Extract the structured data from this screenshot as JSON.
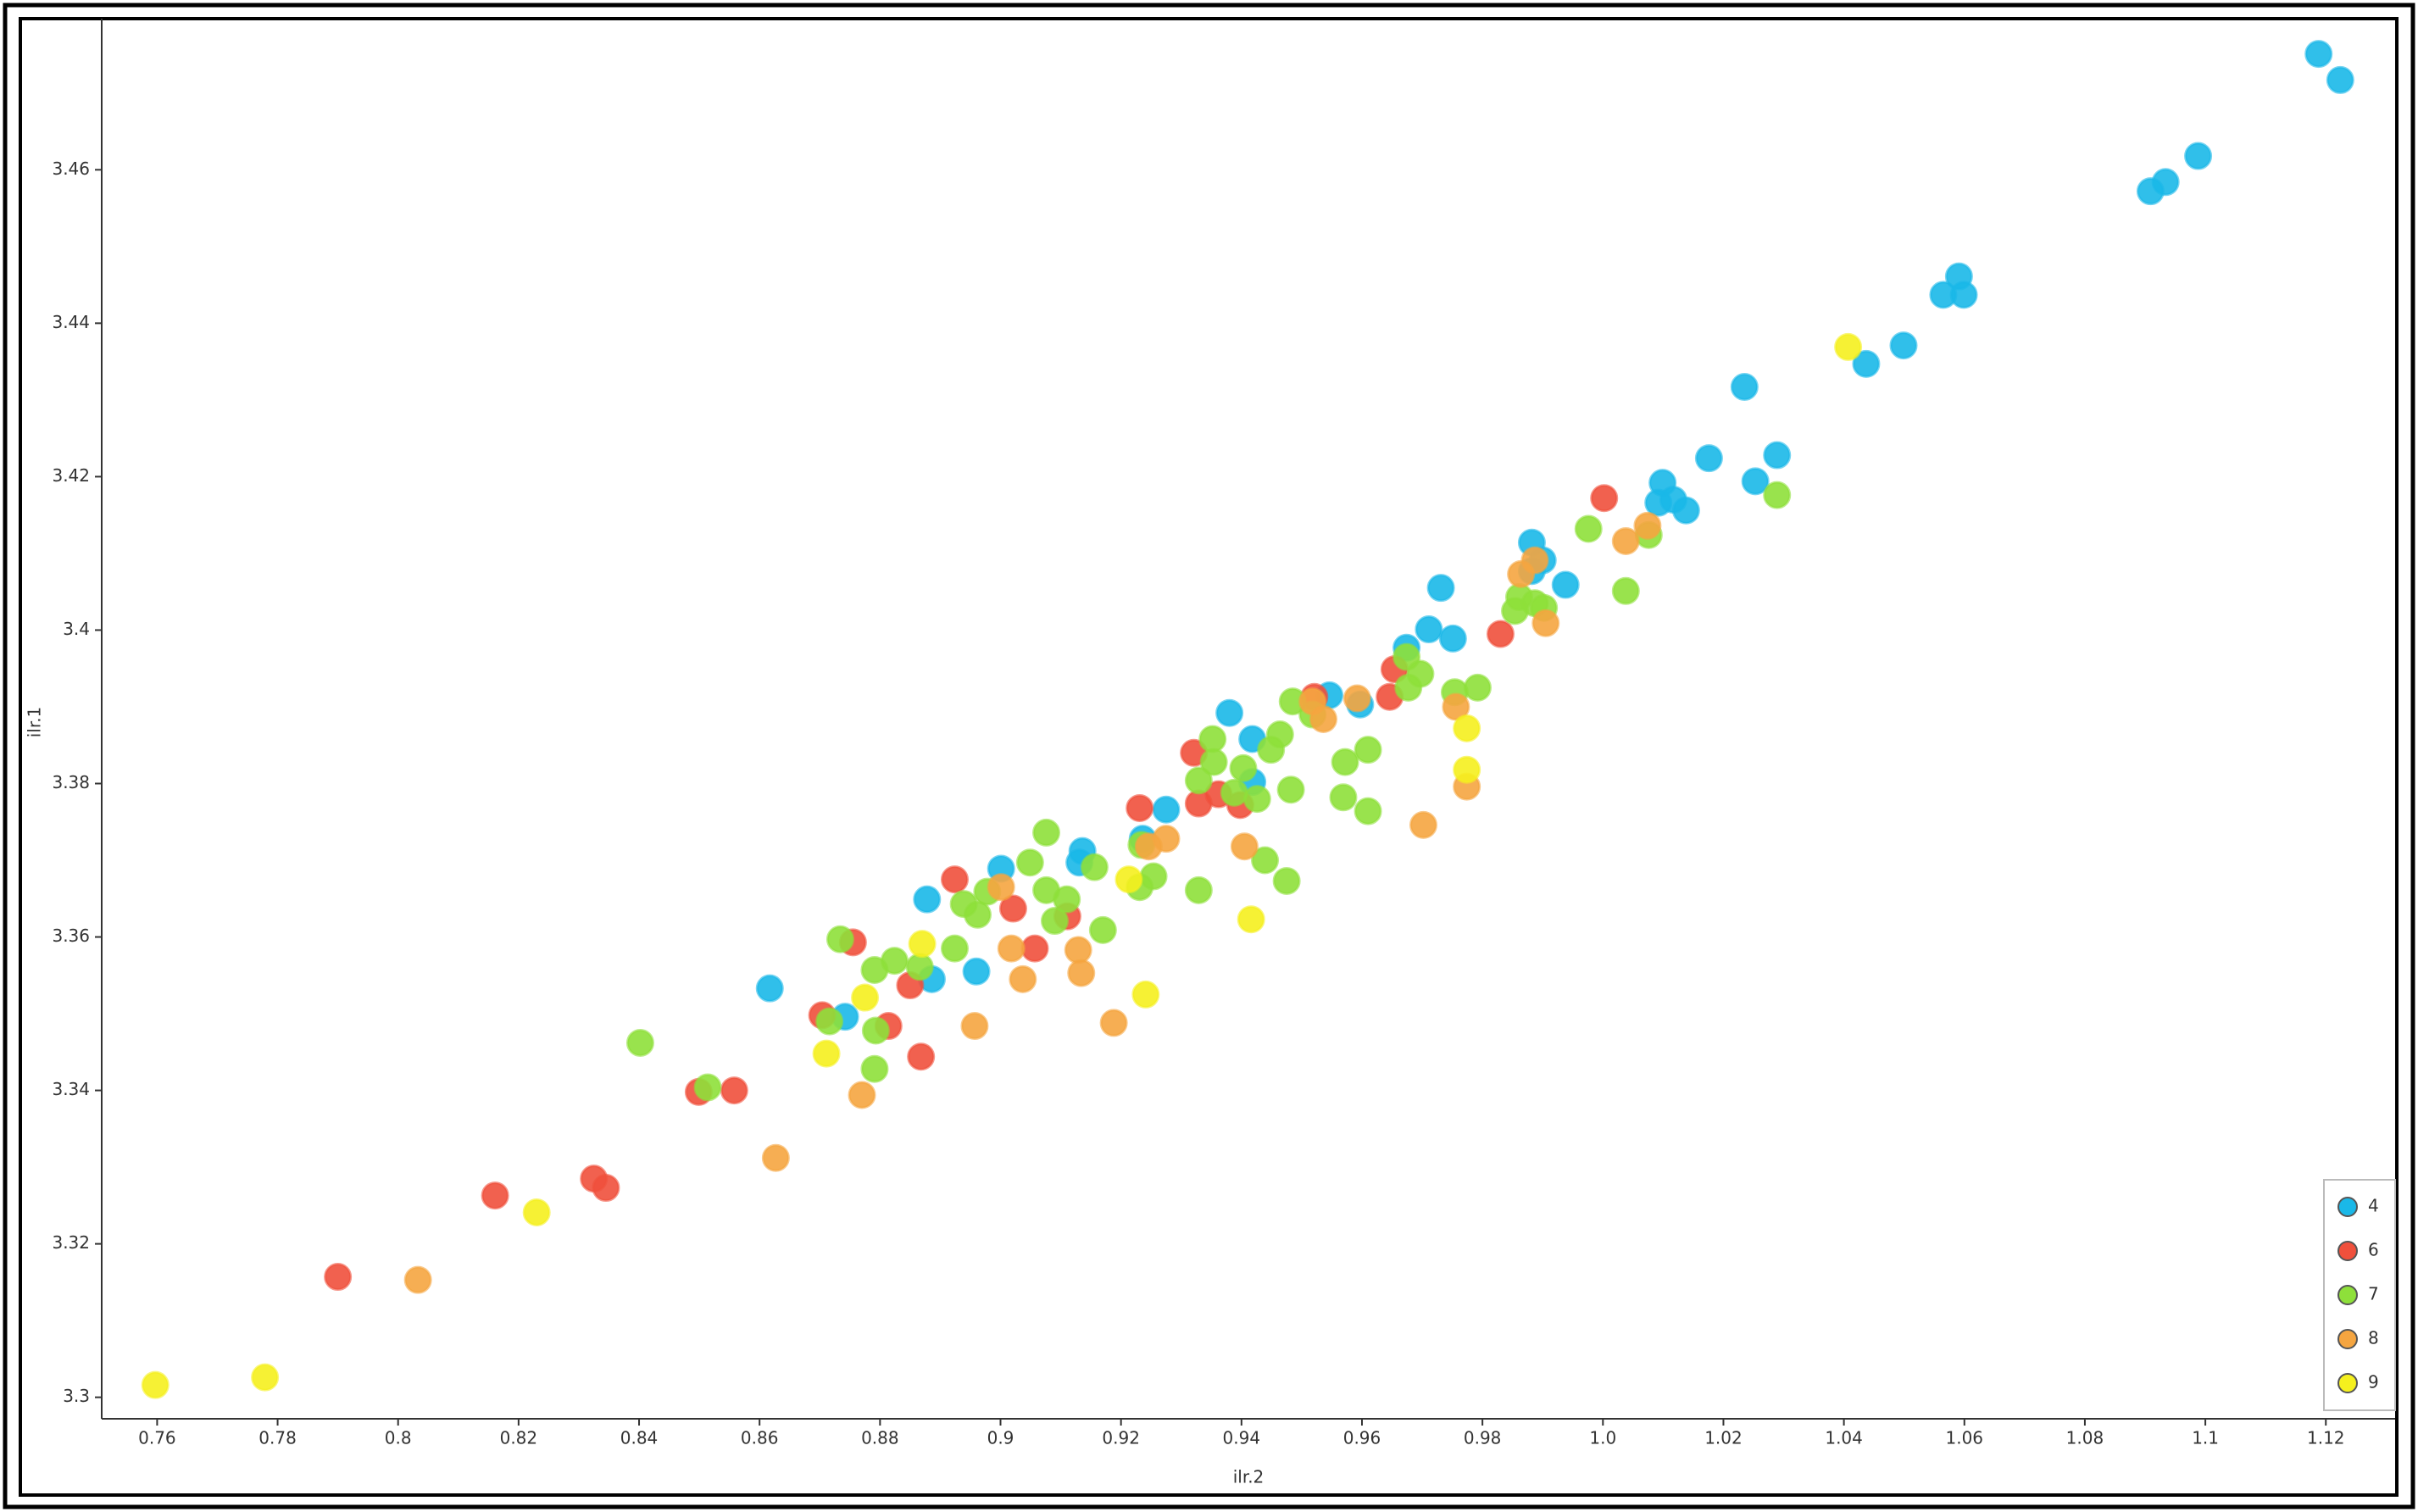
{
  "chart_data": {
    "type": "scatter",
    "x_label": "ilr.2",
    "y_label": "ilr.1",
    "xlim": [
      0.7508,
      1.1315
    ],
    "ylim": [
      3.2972,
      3.4797
    ],
    "xticks": [
      0.76,
      0.78,
      0.8,
      0.82,
      0.84,
      0.86,
      0.88,
      0.9,
      0.92,
      0.94,
      0.96,
      0.98,
      {
        "value": 1,
        "label": "1.0"
      },
      1.02,
      1.04,
      1.06,
      1.08,
      1.1,
      1.12
    ],
    "yticks": [
      3.3,
      3.32,
      3.34,
      3.36,
      3.38,
      3.4,
      3.42,
      3.44,
      3.46
    ],
    "legend_position": "lower right",
    "series": [
      {
        "name": "4",
        "color": "#1ab8e8",
        "x": [
          1.1188,
          1.1224,
          1.0988,
          1.0934,
          1.0909,
          1.0591,
          1.0599,
          1.0565,
          1.0499,
          1.0437,
          1.0235,
          1.0176,
          1.0289,
          1.0253,
          1.0099,
          1.0117,
          1.0092,
          1.0138,
          0.9882,
          0.99,
          0.9882,
          0.9938,
          0.9731,
          0.9711,
          0.9751,
          0.9674,
          0.9546,
          0.9597,
          0.938,
          0.9418,
          0.9418,
          0.9275,
          0.9236,
          0.9136,
          0.9131,
          0.9001,
          0.8878,
          0.896,
          0.8886,
          0.8742,
          0.8617
        ],
        "y": [
          3.4751,
          3.4717,
          3.4618,
          3.4584,
          3.4572,
          3.4461,
          3.4437,
          3.4437,
          3.4371,
          3.4347,
          3.4317,
          3.4224,
          3.4228,
          3.4194,
          3.4192,
          3.417,
          3.4166,
          3.4156,
          3.4114,
          3.4091,
          3.4077,
          3.4059,
          3.4055,
          3.4001,
          3.3989,
          3.3977,
          3.3915,
          3.3903,
          3.3892,
          3.3858,
          3.3802,
          3.3766,
          3.3728,
          3.3712,
          3.3697,
          3.3689,
          3.3649,
          3.3555,
          3.3545,
          3.3496,
          3.3533
        ]
      },
      {
        "name": "6",
        "color": "#f0503c",
        "x": [
          1.0002,
          0.983,
          0.9654,
          0.9646,
          0.9521,
          0.9321,
          0.9362,
          0.9398,
          0.9329,
          0.9231,
          0.9111,
          0.9021,
          0.9057,
          0.8924,
          0.8755,
          0.885,
          0.8814,
          0.8704,
          0.8868,
          0.8499,
          0.8558,
          0.8161,
          0.8325,
          0.8345,
          0.79
        ],
        "y": [
          3.4172,
          3.3995,
          3.3949,
          3.3913,
          3.3913,
          3.384,
          3.3786,
          3.3772,
          3.3774,
          3.3768,
          3.3627,
          3.3637,
          3.3585,
          3.3675,
          3.3593,
          3.3537,
          3.3484,
          3.3498,
          3.3444,
          3.3398,
          3.34,
          3.3263,
          3.3285,
          3.3273,
          3.3157
        ]
      },
      {
        "name": "7",
        "color": "#8ee03a",
        "x": [
          1.0289,
          1.0076,
          0.9976,
          1.0038,
          0.9861,
          0.9887,
          0.9902,
          0.9854,
          0.9674,
          0.9697,
          0.9677,
          0.9754,
          0.9792,
          0.9485,
          0.9518,
          0.9464,
          0.9449,
          0.9352,
          0.9354,
          0.9403,
          0.961,
          0.9572,
          0.9388,
          0.9426,
          0.9482,
          0.9569,
          0.961,
          0.9329,
          0.9076,
          0.9234,
          0.9439,
          0.9475,
          0.9254,
          0.9231,
          0.9329,
          0.9156,
          0.9049,
          0.9076,
          0.911,
          0.909,
          0.8978,
          0.8939,
          0.8962,
          0.917,
          0.8924,
          0.8734,
          0.8824,
          0.8791,
          0.8866,
          0.8716,
          0.8793,
          0.8791,
          0.8402,
          0.8514
        ],
        "y": [
          3.4176,
          3.4124,
          3.4132,
          3.4051,
          3.4043,
          3.4035,
          3.4029,
          3.4025,
          3.3965,
          3.3943,
          3.3925,
          3.3919,
          3.3925,
          3.3907,
          3.389,
          3.3864,
          3.3844,
          3.3858,
          3.3828,
          3.382,
          3.3844,
          3.3828,
          3.3788,
          3.378,
          3.3792,
          3.3782,
          3.3764,
          3.3804,
          3.3736,
          3.372,
          3.37,
          3.3673,
          3.3679,
          3.3665,
          3.3661,
          3.3691,
          3.3697,
          3.3661,
          3.3649,
          3.3621,
          3.3659,
          3.3643,
          3.3629,
          3.3609,
          3.3585,
          3.3597,
          3.3569,
          3.3557,
          3.3561,
          3.349,
          3.3478,
          3.3428,
          3.3462,
          3.3404
        ]
      },
      {
        "name": "8",
        "color": "#f5a540",
        "x": [
          1.0074,
          1.0038,
          0.9887,
          0.9864,
          0.9905,
          0.9774,
          0.9702,
          0.9756,
          0.9592,
          0.9518,
          0.9536,
          0.9275,
          0.9246,
          0.9405,
          0.9001,
          0.9018,
          0.9129,
          0.9134,
          0.9037,
          0.8957,
          0.9188,
          0.877,
          0.8627,
          0.8033
        ],
        "y": [
          3.4136,
          3.4116,
          3.4091,
          3.4073,
          3.4009,
          3.3796,
          3.3746,
          3.39,
          3.3911,
          3.3907,
          3.3884,
          3.3728,
          3.3718,
          3.3718,
          3.3665,
          3.3585,
          3.3583,
          3.3553,
          3.3545,
          3.3484,
          3.3488,
          3.3394,
          3.3312,
          3.3153
        ]
      },
      {
        "name": "9",
        "color": "#f5f01e",
        "x": [
          1.0407,
          0.9774,
          0.9774,
          0.9416,
          0.9213,
          0.9241,
          0.887,
          0.8775,
          0.8711,
          0.823,
          0.7779,
          0.7597
        ],
        "y": [
          3.4369,
          3.3872,
          3.3818,
          3.3623,
          3.3675,
          3.3525,
          3.3591,
          3.3521,
          3.3448,
          3.3241,
          3.3026,
          3.3016
        ]
      }
    ]
  }
}
